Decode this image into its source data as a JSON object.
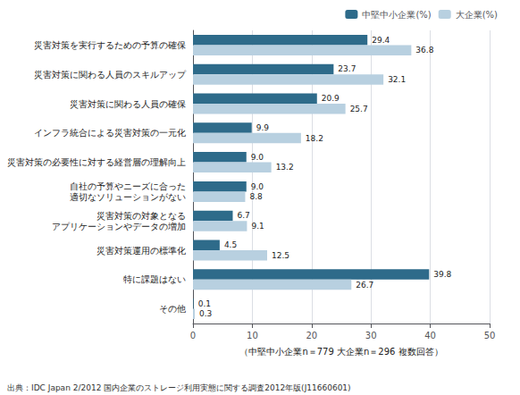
{
  "chart_data": {
    "type": "bar",
    "orientation": "horizontal",
    "categories": [
      "災害対策を実行するための予算の確保",
      "災害対策に関わる人員のスキルアップ",
      "災害対策に関わる人員の確保",
      "インフラ統合による災害対策の一元化",
      "災害対策の必要性に対する経営層の理解向上",
      "自社の予算やニーズに合った\n適切なソリューションがない",
      "災害対策の対象となる\nアプリケーションやデータの増加",
      "災害対策運用の標準化",
      "特に課題はない",
      "その他"
    ],
    "series": [
      {
        "name": "中堅中小企業(%)",
        "color": "#2e6b8a",
        "values": [
          29.4,
          23.7,
          20.9,
          9.9,
          9.0,
          9.0,
          6.7,
          4.5,
          39.8,
          0.1
        ],
        "value_labels": [
          "29.4",
          "23.7",
          "20.9",
          "9.9",
          "9.0",
          "9.0",
          "6.7",
          "4.5",
          "39.8",
          "0.1"
        ]
      },
      {
        "name": "大企業(%)",
        "color": "#b8d0e0",
        "values": [
          36.8,
          32.1,
          25.7,
          18.2,
          13.2,
          8.8,
          9.1,
          12.5,
          26.7,
          0.3
        ],
        "value_labels": [
          "36.8",
          "32.1",
          "25.7",
          "18.2",
          "13.2",
          "8.8",
          "9.1",
          "12.5",
          "26.7",
          "0.3"
        ]
      }
    ],
    "xlabel": "（中堅中小企業n＝779 大企業n＝296 複数回答）",
    "xlim": [
      0,
      50
    ],
    "xticks": [
      0,
      10,
      20,
      30,
      40,
      50
    ],
    "grid": true,
    "legend": "upper right",
    "data_labels": true,
    "annotations": [
      "出典：IDC Japan 2/2012 国内企業のストレージ利用実態に関する調査2012年版(J11660601)"
    ]
  }
}
